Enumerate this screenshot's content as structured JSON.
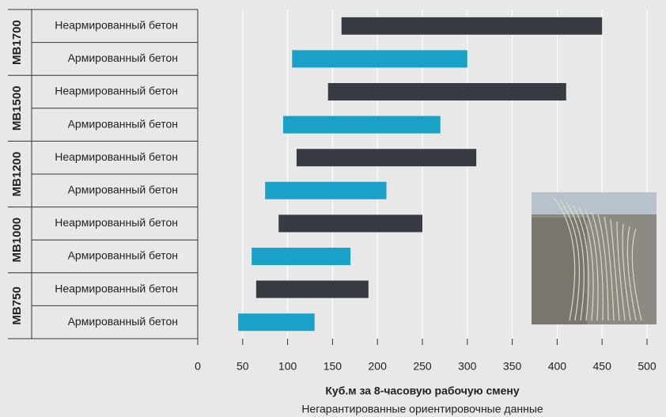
{
  "chart_data": {
    "type": "range-bar",
    "groups": [
      {
        "label": "MB1700",
        "rows": [
          {
            "label": "Неармированный бетон",
            "start": 160,
            "end": 450
          },
          {
            "label": "Армированный бетон",
            "start": 105,
            "end": 300
          }
        ]
      },
      {
        "label": "MB1500",
        "rows": [
          {
            "label": "Неармированный бетон",
            "start": 145,
            "end": 410
          },
          {
            "label": "Армированный бетон",
            "start": 95,
            "end": 270
          }
        ]
      },
      {
        "label": "MB1200",
        "rows": [
          {
            "label": "Неармированный бетон",
            "start": 110,
            "end": 310
          },
          {
            "label": "Армированный бетон",
            "start": 75,
            "end": 210
          }
        ]
      },
      {
        "label": "MB1000",
        "rows": [
          {
            "label": "Неармированный бетон",
            "start": 90,
            "end": 250
          },
          {
            "label": "Армированный бетон",
            "start": 60,
            "end": 170
          }
        ]
      },
      {
        "label": "MB750",
        "rows": [
          {
            "label": "Неармированный бетон",
            "start": 65,
            "end": 190
          },
          {
            "label": "Армированный бетон",
            "start": 45,
            "end": 130
          }
        ]
      }
    ],
    "row_colors": [
      "#373c43",
      "#1aa1c8"
    ],
    "xlim": [
      0,
      500
    ],
    "xticks": [
      0,
      50,
      100,
      150,
      200,
      250,
      300,
      350,
      400,
      450,
      500
    ],
    "x_label": "Куб.м за 8-часовую рабочую смену",
    "note": "Негарантированные ориентировочные данные",
    "grid": true
  }
}
